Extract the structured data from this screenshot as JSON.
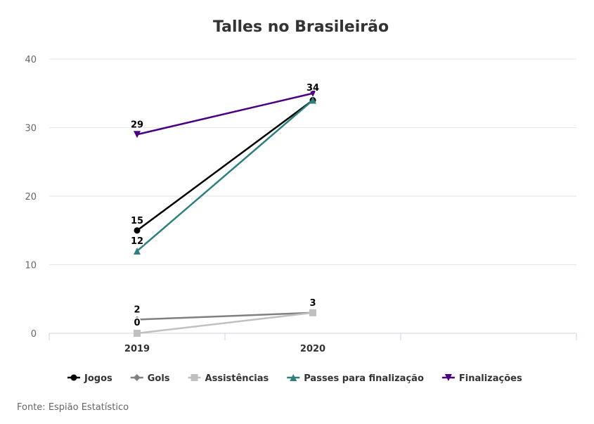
{
  "chart_data": {
    "type": "line",
    "title": "Talles no Brasileirão",
    "categories": [
      "2019",
      "2020"
    ],
    "ylim": [
      0,
      40
    ],
    "yticks": [
      0,
      10,
      20,
      30,
      40
    ],
    "grid": true,
    "legend_placement": "bottom",
    "series": [
      {
        "name": "Jogos",
        "values": [
          15,
          34
        ],
        "color": "#000000",
        "marker": "circle"
      },
      {
        "name": "Gols",
        "values": [
          2,
          3
        ],
        "color": "#808080",
        "marker": "diamond"
      },
      {
        "name": "Assistências",
        "values": [
          0,
          3
        ],
        "color": "#c0c0c0",
        "marker": "square"
      },
      {
        "name": "Passes para finalização",
        "values": [
          12,
          34
        ],
        "color": "#2f7f7f",
        "marker": "triangle"
      },
      {
        "name": "Finalizações",
        "values": [
          29,
          35
        ],
        "color": "#4b0082",
        "marker": "triangle-down"
      }
    ],
    "data_labels": [
      {
        "series": 0,
        "index": 0,
        "text": "15"
      },
      {
        "series": 0,
        "index": 1,
        "text": "34"
      },
      {
        "series": 1,
        "index": 0,
        "text": "2"
      },
      {
        "series": 1,
        "index": 1,
        "text": "3"
      },
      {
        "series": 2,
        "index": 0,
        "text": "0"
      },
      {
        "series": 3,
        "index": 0,
        "text": "12"
      },
      {
        "series": 4,
        "index": 0,
        "text": "29"
      }
    ]
  },
  "source": "Fonte: Espião Estatístico"
}
